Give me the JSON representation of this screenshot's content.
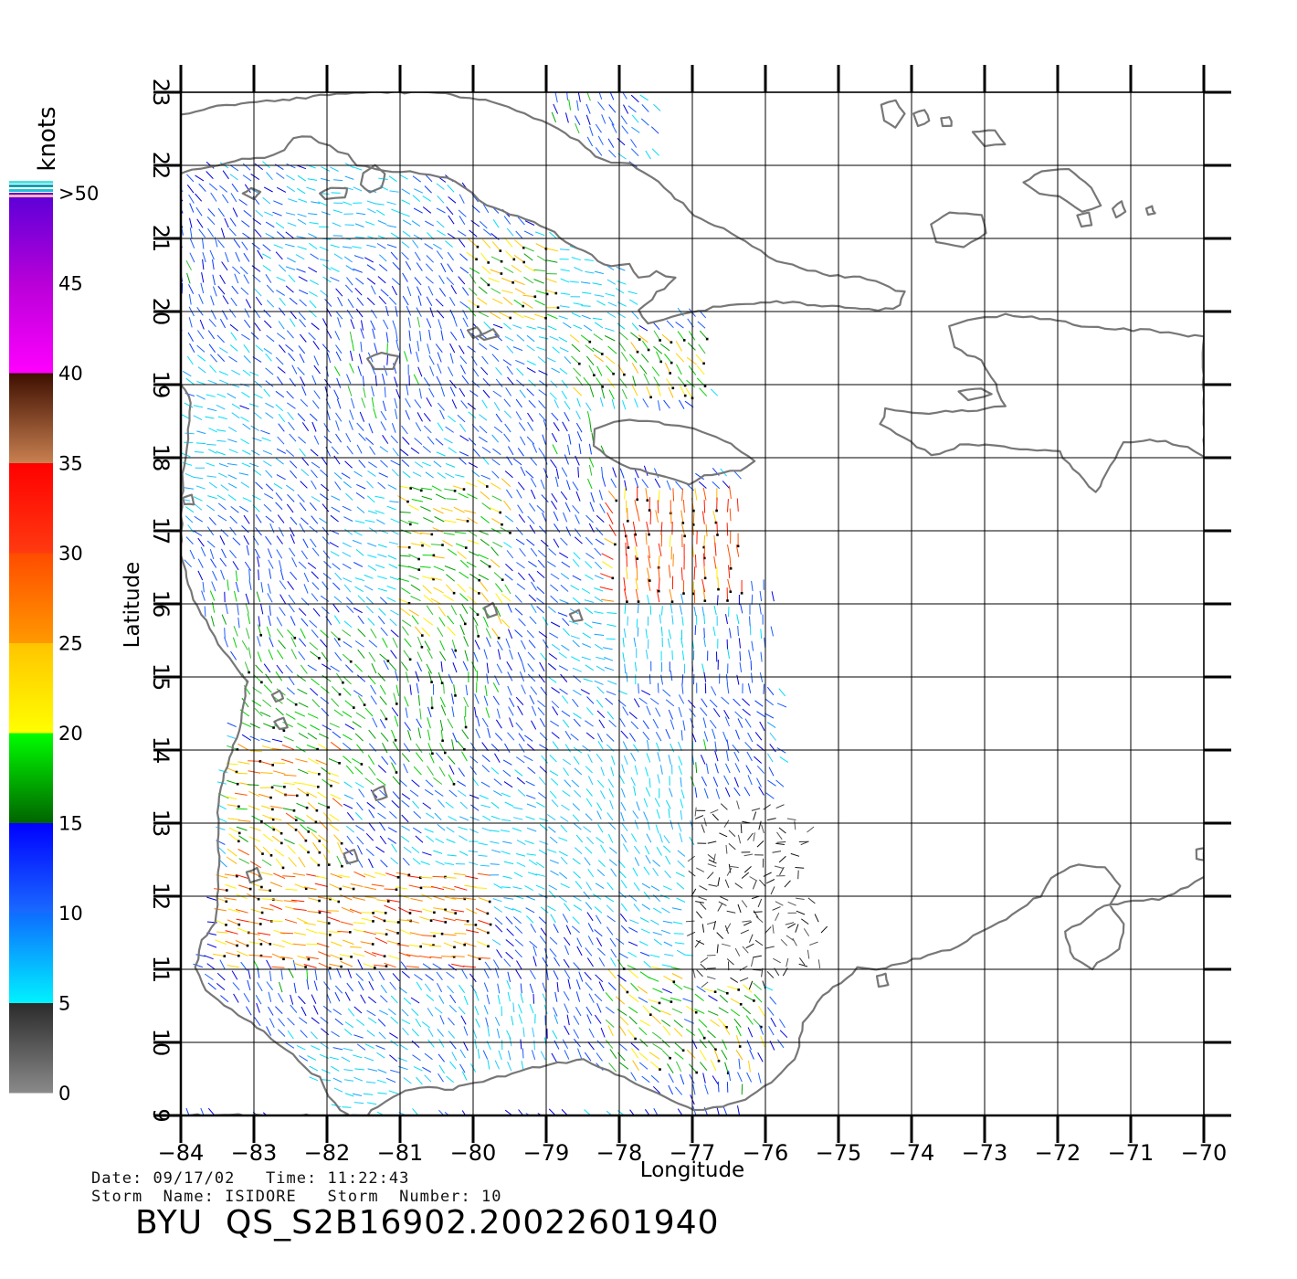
{
  "map": {
    "lon_range": [
      -84,
      -70
    ],
    "lat_range": [
      9,
      23
    ],
    "xlabel": "Longitude",
    "ylabel": "Latitude",
    "lon_ticks": [
      "-84",
      "-83",
      "-82",
      "-81",
      "-80",
      "-79",
      "-78",
      "-77",
      "-76",
      "-75",
      "-74",
      "-73",
      "-72",
      "-71",
      "-70"
    ],
    "lat_ticks": [
      "9",
      "10",
      "11",
      "12",
      "13",
      "14",
      "15",
      "16",
      "17",
      "18",
      "19",
      "20",
      "21",
      "22",
      "23"
    ],
    "grid": true,
    "coastline_color": "#777777"
  },
  "colorbar": {
    "unit": "knots",
    "labels": [
      "0",
      "5",
      "10",
      "15",
      "20",
      "25",
      "30",
      "35",
      "40",
      "45",
      ">50"
    ],
    "bands": [
      {
        "label": "0-5",
        "from": "#8a8a8a",
        "to": "#2a2a2a"
      },
      {
        "label": "5-10",
        "from": "#00f2ff",
        "to": "#0d6cff"
      },
      {
        "label": "10-15",
        "from": "#1a6bff",
        "to": "#0000ff"
      },
      {
        "label": "15-20",
        "from": "#006400",
        "to": "#00ff00"
      },
      {
        "label": "20-25",
        "from": "#ffff00",
        "to": "#ffc400"
      },
      {
        "label": "25-30",
        "from": "#ff9900",
        "to": "#ff4b00"
      },
      {
        "label": "30-35",
        "from": "#ff3a10",
        "to": "#ff0000"
      },
      {
        "label": "35-40",
        "from": "#c88050",
        "to": "#3d0e00"
      },
      {
        "label": "40-45",
        "from": "#ff00ff",
        "to": "#b800d8"
      },
      {
        "label": "45-50",
        "from": "#b800d8",
        "to": "#5a00d8"
      }
    ]
  },
  "footer": {
    "date_label": "Date:",
    "date": "09/17/02",
    "time_label": "Time:",
    "time": "11:22:43",
    "storm_name_label": "Storm  Name:",
    "storm_name": "ISIDORE",
    "storm_number_label": "Storm  Number:",
    "storm_number": "10",
    "file_id": "BYU  QS_S2B16902.20022601940"
  }
}
